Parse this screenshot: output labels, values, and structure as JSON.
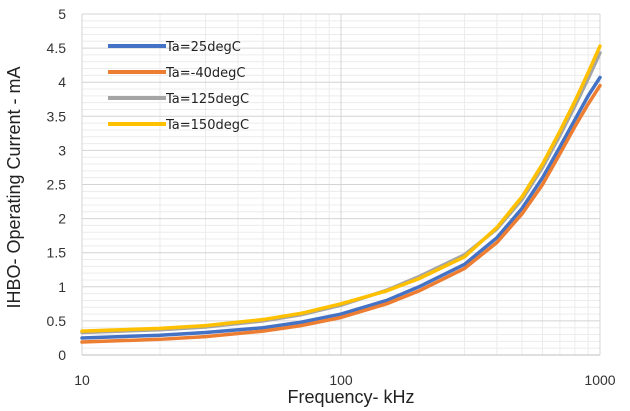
{
  "chart_data": {
    "type": "line",
    "title": "",
    "xlabel": "Frequency- kHz",
    "ylabel": "IHBO- Operating Current - mA",
    "x_scale": "log",
    "xlim": [
      10,
      1000
    ],
    "ylim": [
      0,
      5
    ],
    "x_ticks": [
      "10",
      "100",
      "1000"
    ],
    "y_ticks": [
      "0",
      "0.5",
      "1",
      "1.5",
      "2",
      "2.5",
      "3",
      "3.5",
      "4",
      "4.5",
      "5"
    ],
    "grid": true,
    "legend_position": "top-left",
    "series": [
      {
        "name": "Ta=25degC",
        "color": "#4472C4",
        "x": [
          10,
          20,
          30,
          50,
          70,
          100,
          150,
          200,
          300,
          400,
          500,
          600,
          700,
          800,
          900,
          1000
        ],
        "y": [
          0.25,
          0.29,
          0.33,
          0.4,
          0.48,
          0.6,
          0.8,
          1.0,
          1.33,
          1.72,
          2.15,
          2.6,
          3.05,
          3.45,
          3.8,
          4.07
        ]
      },
      {
        "name": "Ta=-40degC",
        "color": "#ED7D31",
        "x": [
          10,
          20,
          30,
          50,
          70,
          100,
          150,
          200,
          300,
          400,
          500,
          600,
          700,
          800,
          900,
          1000
        ],
        "y": [
          0.19,
          0.23,
          0.27,
          0.35,
          0.43,
          0.55,
          0.75,
          0.94,
          1.27,
          1.65,
          2.07,
          2.5,
          2.95,
          3.35,
          3.68,
          3.95
        ]
      },
      {
        "name": "Ta=125degC",
        "color": "#A5A5A5",
        "x": [
          10,
          20,
          30,
          50,
          70,
          100,
          150,
          200,
          300,
          400,
          500,
          600,
          700,
          800,
          900,
          1000
        ],
        "y": [
          0.33,
          0.37,
          0.41,
          0.5,
          0.59,
          0.73,
          0.95,
          1.15,
          1.47,
          1.85,
          2.28,
          2.75,
          3.22,
          3.65,
          4.05,
          4.43
        ]
      },
      {
        "name": "Ta=150degC",
        "color": "#FFC000",
        "x": [
          10,
          20,
          30,
          50,
          70,
          100,
          150,
          200,
          300,
          400,
          500,
          600,
          700,
          800,
          900,
          1000
        ],
        "y": [
          0.35,
          0.39,
          0.43,
          0.52,
          0.61,
          0.75,
          0.94,
          1.12,
          1.44,
          1.87,
          2.32,
          2.8,
          3.28,
          3.72,
          4.14,
          4.53
        ]
      }
    ]
  }
}
